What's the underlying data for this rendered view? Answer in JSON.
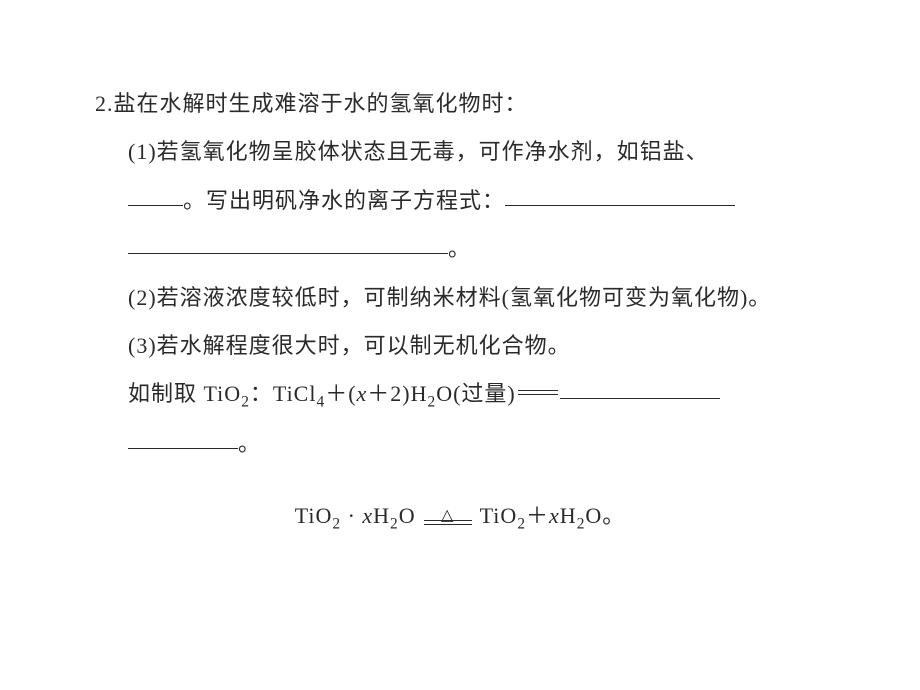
{
  "item": {
    "number": "2.",
    "stem": "盐在水解时生成难溶于水的氢氧化物时：",
    "parts": {
      "p1": {
        "label": "(1)",
        "text_a": "若氢氧化物呈胶体状态且无毒，可作净水剂，如铝盐、",
        "text_b": "。写出明矾净水的离子方程式：",
        "text_c": "。"
      },
      "p2": {
        "label": "(2)",
        "text": "若溶液浓度较低时，可制纳米材料(氢氧化物可变为氧化物)。"
      },
      "p3": {
        "label": "(3)",
        "text_a": "若水解程度很大时，可以制无机化合物。",
        "text_b_pre": "如制取 ",
        "tio2": "TiO",
        "colon": "：",
        "ticl4": "TiCl",
        "plus": "＋(",
        "x": "x",
        "plus2": "＋2)H",
        "o_excess": "O(过量)",
        "period": "。"
      }
    },
    "formula_line": {
      "tio2": "TiO",
      "dot": "·",
      "x": "x",
      "h2o": "H",
      "o": "O",
      "triangle": "△",
      "rhs_tio2": "TiO",
      "rhs_plus": "＋",
      "rhs_x": "x",
      "rhs_h2o": "H",
      "rhs_o": "O",
      "end": "。"
    }
  }
}
